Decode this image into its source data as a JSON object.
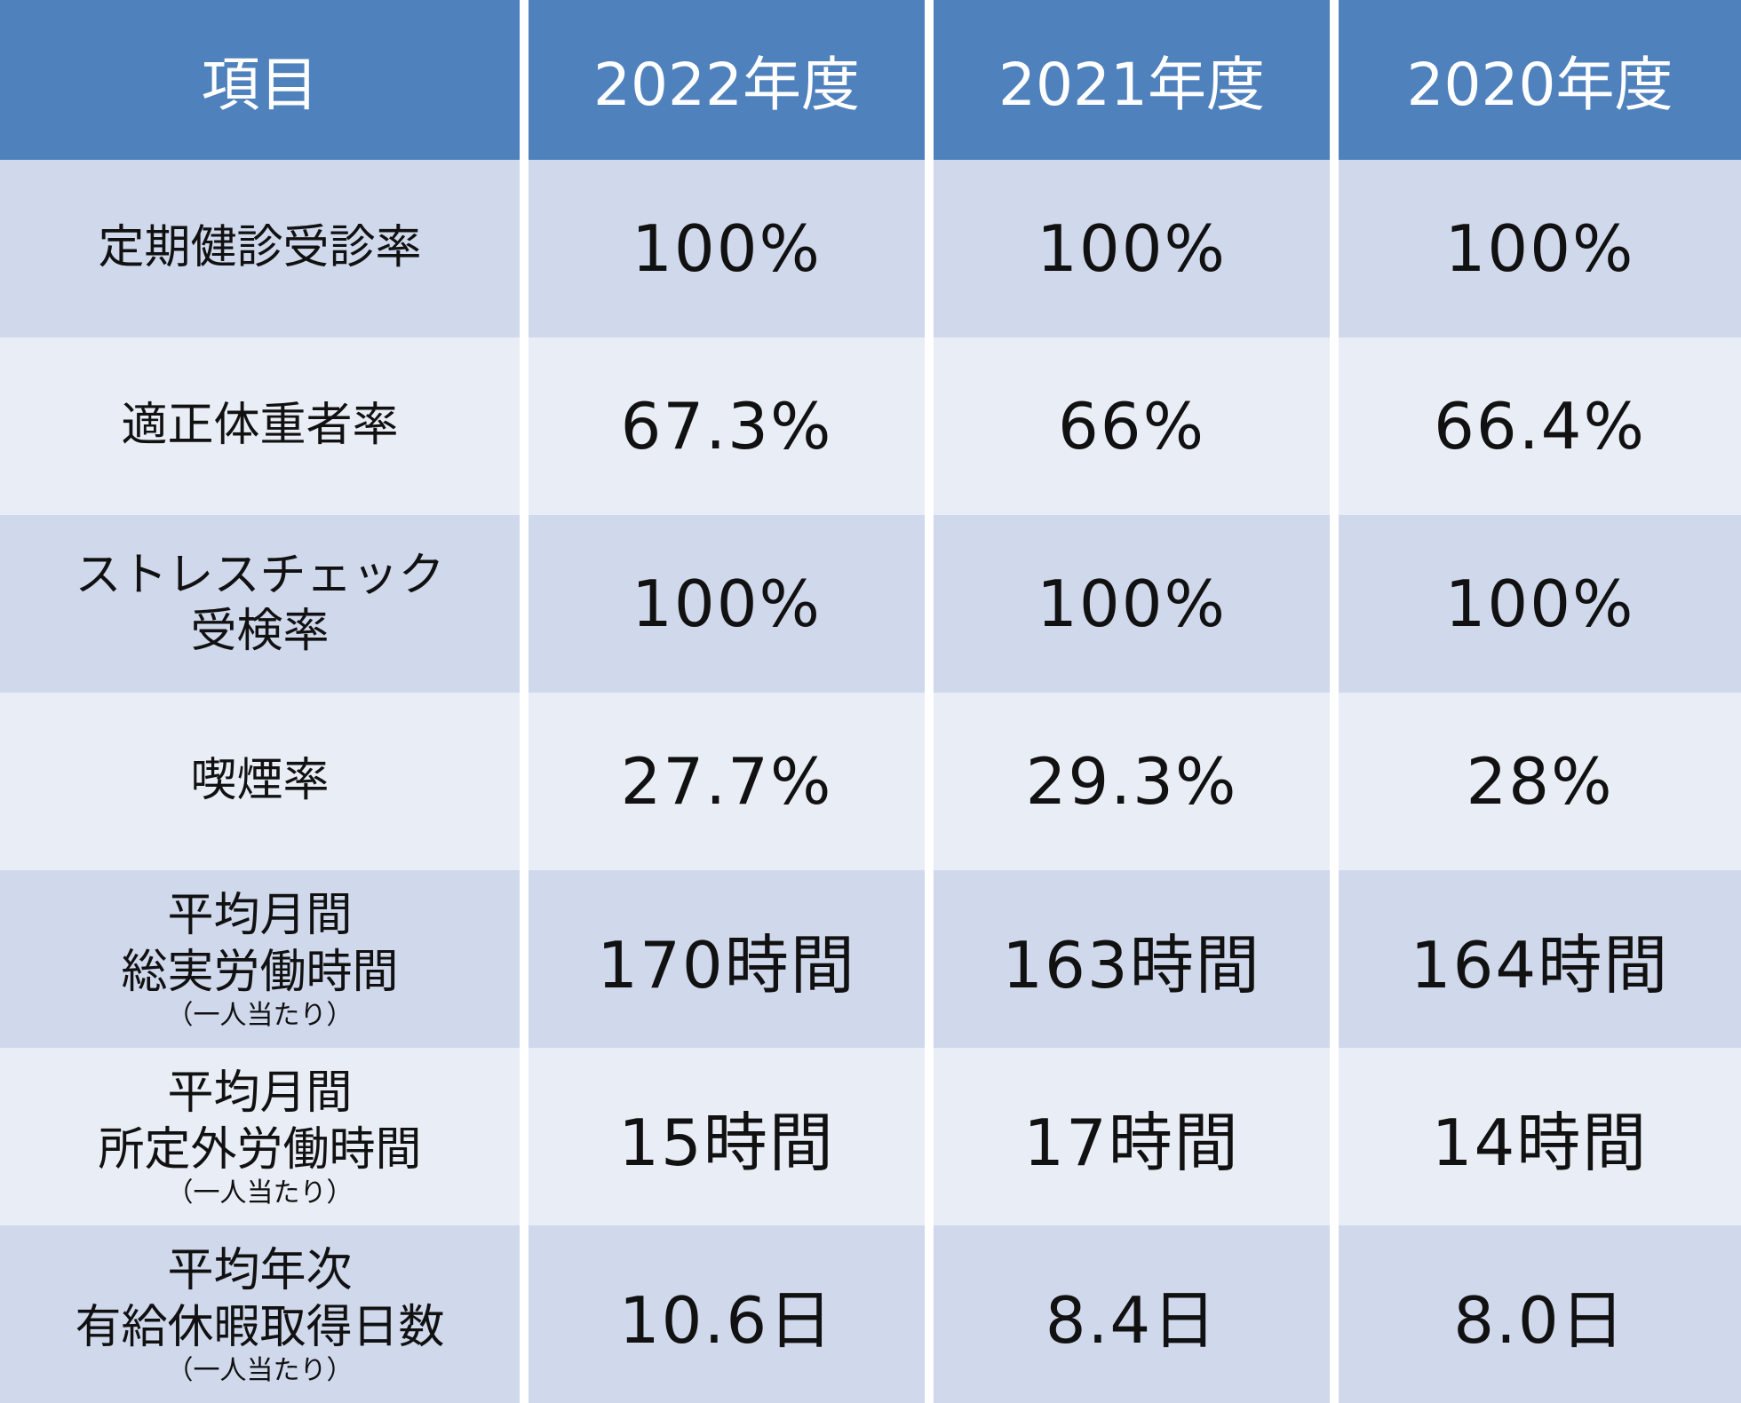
{
  "table": {
    "header": [
      "項目",
      "2022年度",
      "2021年度",
      "2020年度"
    ],
    "rows": [
      {
        "label": [
          "定期健診受診率"
        ],
        "values": [
          "100%",
          "100%",
          "100%"
        ]
      },
      {
        "label": [
          "適正体重者率"
        ],
        "values": [
          "67.3%",
          "66%",
          "66.4%"
        ]
      },
      {
        "label": [
          "ストレスチェック",
          "受検率"
        ],
        "values": [
          "100%",
          "100%",
          "100%"
        ]
      },
      {
        "label": [
          "喫煙率"
        ],
        "values": [
          "27.7%",
          "29.3%",
          "28%"
        ]
      },
      {
        "label": [
          "平均月間",
          "総実労働時間"
        ],
        "note": "（一人当たり）",
        "values": [
          "170時間",
          "163時間",
          "164時間"
        ]
      },
      {
        "label": [
          "平均月間",
          "所定外労働時間"
        ],
        "note": "（一人当たり）",
        "values": [
          "15時間",
          "17時間",
          "14時間"
        ]
      },
      {
        "label": [
          "平均年次",
          "有給休暇取得日数"
        ],
        "note": "（一人当たり）",
        "values": [
          "10.6日",
          "8.4日",
          "8.0日"
        ]
      }
    ]
  }
}
